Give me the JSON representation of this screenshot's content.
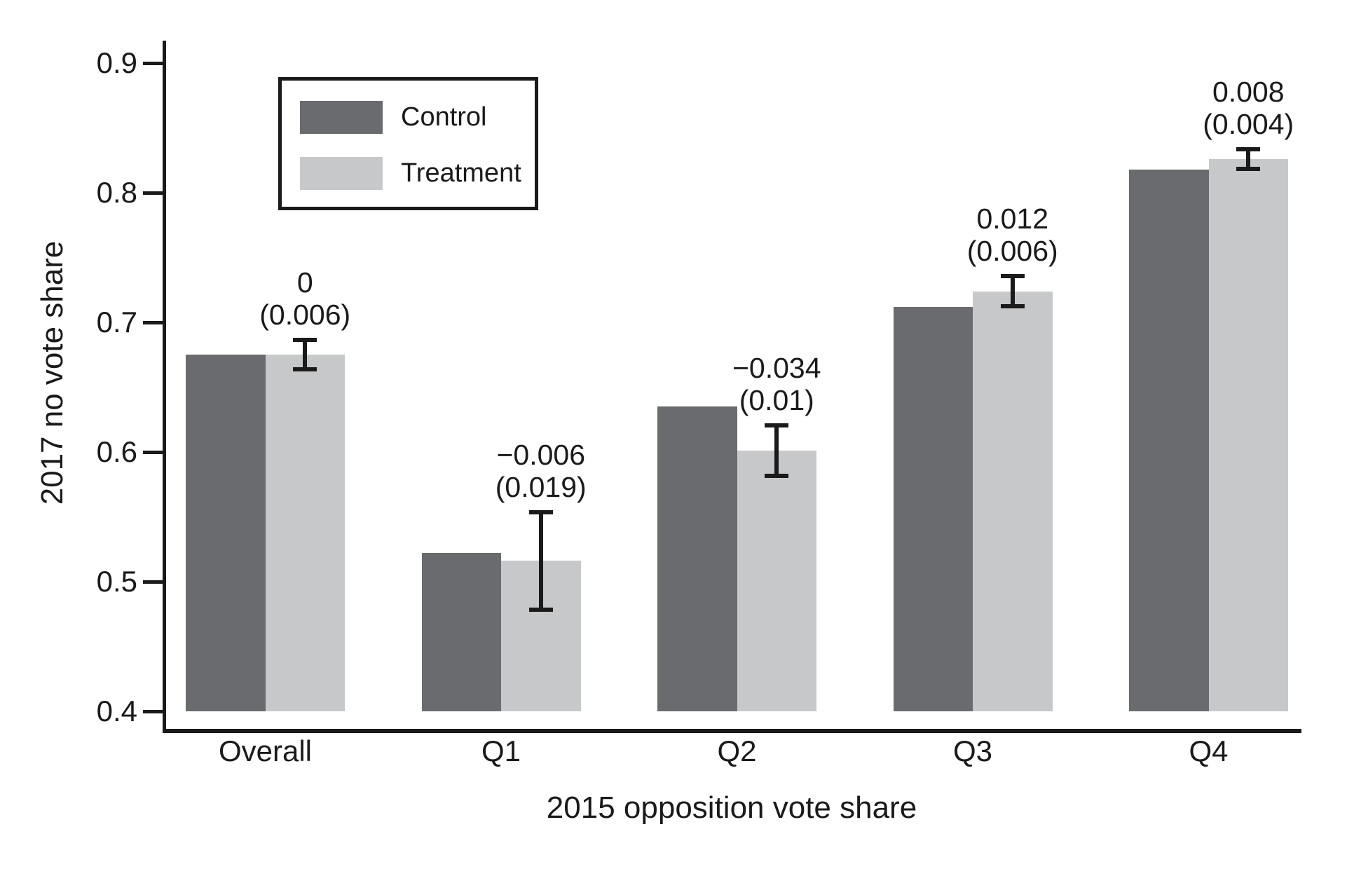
{
  "chart_data": {
    "type": "bar",
    "title": "",
    "xlabel": "2015 opposition vote share",
    "ylabel": "2017 no vote share",
    "categories": [
      "Overall",
      "Q1",
      "Q2",
      "Q3",
      "Q4"
    ],
    "series": [
      {
        "name": "Control",
        "color": "#6a6b6e",
        "values": [
          0.675,
          0.522,
          0.635,
          0.712,
          0.818
        ]
      },
      {
        "name": "Treatment",
        "color": "#c7c8ca",
        "values": [
          0.675,
          0.516,
          0.601,
          0.724,
          0.826
        ]
      }
    ],
    "error_bars": {
      "on_series": "Treatment",
      "centers": [
        0.675,
        0.516,
        0.601,
        0.724,
        0.826
      ],
      "half_lengths": [
        0.012,
        0.038,
        0.02,
        0.012,
        0.008
      ]
    },
    "annotations": [
      {
        "effect": "0",
        "se": "(0.006)"
      },
      {
        "effect": "−0.006",
        "se": "(0.019)"
      },
      {
        "effect": "−0.034",
        "se": "(0.01)"
      },
      {
        "effect": "0.012",
        "se": "(0.006)"
      },
      {
        "effect": "0.008",
        "se": "(0.004)"
      }
    ],
    "ylim": [
      0.4,
      0.9
    ],
    "ytick_values": [
      0.9,
      0.8,
      0.7,
      0.6,
      0.5,
      0.4
    ],
    "ytick_labels": [
      "0.9",
      "0.8",
      "0.7",
      "0.6",
      "0.5",
      "0.4"
    ],
    "bar_base": 0.4,
    "grid": false,
    "legend_position": "top-left-inside",
    "legend_entries": [
      "Control",
      "Treatment"
    ]
  },
  "colors": {
    "control": "#6a6b6e",
    "treatment": "#c7c8ca",
    "axis": "#1a1a1a",
    "background": "#ffffff"
  }
}
